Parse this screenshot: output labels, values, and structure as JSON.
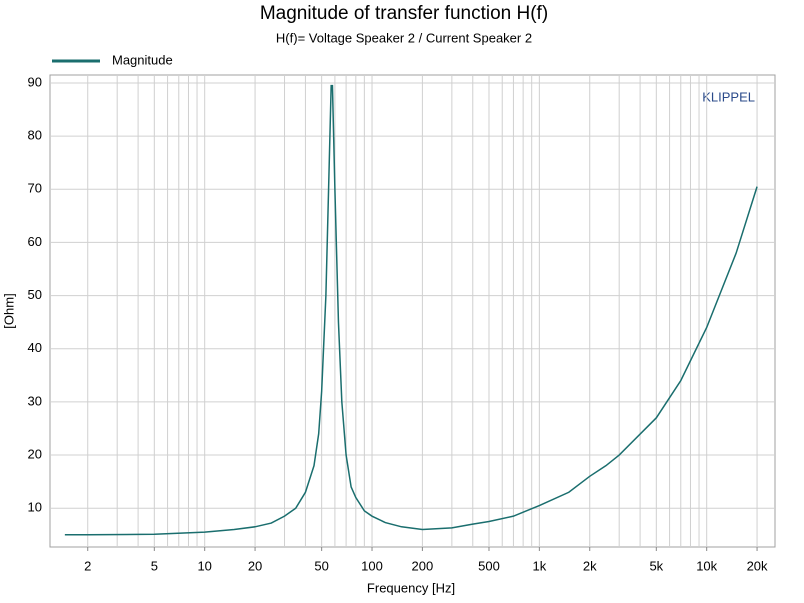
{
  "chart_data": {
    "type": "line",
    "title": "Magnitude of transfer function H(f)",
    "subtitle": "H(f)= Voltage Speaker 2 / Current Speaker 2",
    "annotation": "KLIPPEL",
    "x_label": "Frequency [Hz]",
    "y_label": "[Ohm]",
    "log_x": true,
    "grid": true,
    "xlim": [
      1.19,
      25600
    ],
    "ylim": [
      2.7,
      91.5
    ],
    "xticks": [
      2,
      5,
      10,
      20,
      50,
      100,
      200,
      500,
      {
        "value": 1000,
        "label": "1k"
      },
      {
        "value": 2000,
        "label": "2k"
      },
      {
        "value": 5000,
        "label": "5k"
      },
      {
        "value": 10000,
        "label": "10k"
      },
      {
        "value": 20000,
        "label": "20k"
      }
    ],
    "x_minor_grid": [
      2,
      3,
      4,
      5,
      6,
      7,
      8,
      9,
      10,
      20,
      30,
      40,
      50,
      60,
      70,
      80,
      90,
      100,
      200,
      300,
      400,
      500,
      600,
      700,
      800,
      900,
      1000,
      2000,
      3000,
      4000,
      5000,
      6000,
      7000,
      8000,
      9000,
      10000,
      20000
    ],
    "yticks": [
      10,
      20,
      30,
      40,
      50,
      60,
      70,
      80,
      90
    ],
    "x": [
      1.46,
      2,
      5,
      10,
      15,
      20,
      25,
      30,
      35,
      40,
      45,
      48,
      50,
      53,
      55,
      57,
      58,
      60,
      63,
      66,
      70,
      75,
      80,
      90,
      100,
      120,
      150,
      200,
      300,
      400,
      500,
      700,
      1000,
      1500,
      2000,
      2500,
      3000,
      5000,
      7000,
      10000,
      15000,
      20000
    ],
    "series": [
      {
        "name": "Magnitude",
        "color": "#1a6e6e",
        "values": [
          5.0,
          5.0,
          5.1,
          5.5,
          6.0,
          6.5,
          7.2,
          8.5,
          10,
          13,
          18,
          24,
          32,
          50,
          70,
          89.5,
          89.5,
          70,
          45,
          30,
          20,
          14,
          12,
          9.5,
          8.5,
          7.3,
          6.5,
          6.0,
          6.3,
          7.0,
          7.5,
          8.5,
          10.5,
          13,
          16,
          18,
          20,
          27,
          34,
          44,
          58,
          70.5
        ]
      }
    ]
  }
}
